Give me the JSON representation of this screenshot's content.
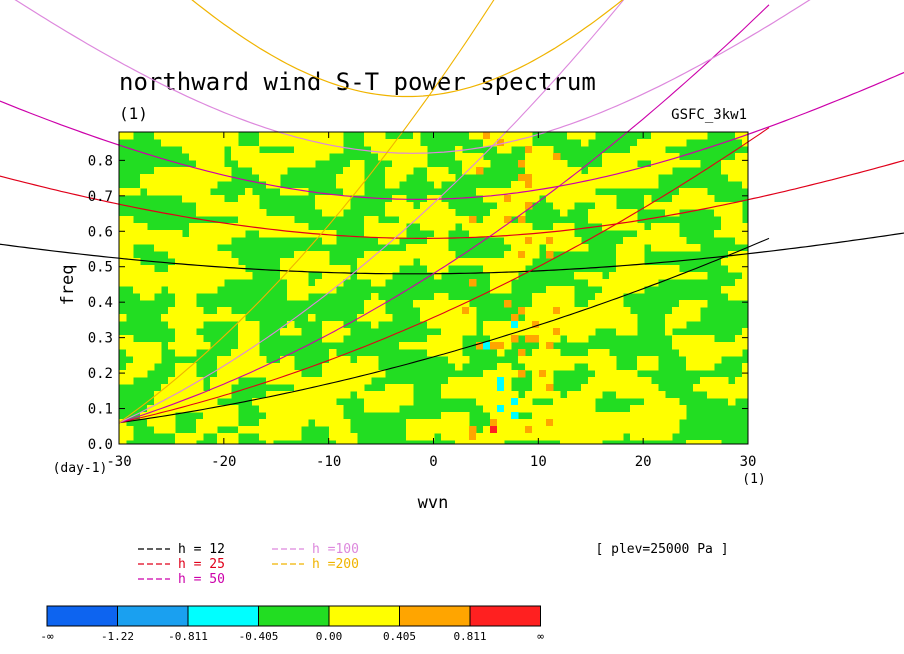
{
  "chart_data": {
    "type": "heatmap",
    "title": "northward wind S-T power spectrum",
    "subtitle": "(1)",
    "source_label": "GSFC_3kw1",
    "xlabel": "wvn",
    "xunit": "(1)",
    "ylabel": "freq",
    "yunit": "(day-1)",
    "xlim": [
      -30,
      30
    ],
    "ylim": [
      0,
      0.88
    ],
    "xticks": [
      -30,
      -20,
      -10,
      0,
      10,
      20,
      30
    ],
    "xtick_labels": [
      "-30",
      "-20",
      "-10",
      "0",
      "10",
      "20",
      "30"
    ],
    "yticks": [
      0,
      0.1,
      0.2,
      0.3,
      0.4,
      0.5,
      0.6,
      0.7,
      0.8
    ],
    "ytick_labels": [
      "0.0",
      "0.1",
      "0.2",
      "0.3",
      "0.4",
      "0.5",
      "0.6",
      "0.7",
      "0.8"
    ],
    "annotation": "[ plev=25000 Pa ]",
    "field_colors": {
      "lt_-1.22": "#0d64f0",
      "-1.22_-0.811": "#1aa0f0",
      "-0.811_-0.405": "#00ffff",
      "-0.405_0.00": "#22dd22",
      "0.00_0.405": "#ffff00",
      "0.405_0.811": "#ffa500",
      "gt_0.811": "#ff2020"
    },
    "dispersion_curves": [
      {
        "label": "h = 12",
        "color": "#000000",
        "equivalent_depth_m": 12
      },
      {
        "label": "h = 25",
        "color": "#e0001a",
        "equivalent_depth_m": 25
      },
      {
        "label": "h = 50",
        "color": "#cc00aa",
        "equivalent_depth_m": 50
      },
      {
        "label": "h =100",
        "color": "#dd88dd",
        "equivalent_depth_m": 100
      },
      {
        "label": "h =200",
        "color": "#f0b400",
        "equivalent_depth_m": 200
      }
    ],
    "colorbar": {
      "labels": [
        "-∞",
        "-1.22",
        "-0.811",
        "-0.405",
        "0.00",
        "0.405",
        "0.811",
        "∞"
      ],
      "colors": [
        "#0d64f0",
        "#1aa0f0",
        "#00ffff",
        "#22dd22",
        "#ffff00",
        "#ffa500",
        "#ff2020"
      ]
    }
  }
}
